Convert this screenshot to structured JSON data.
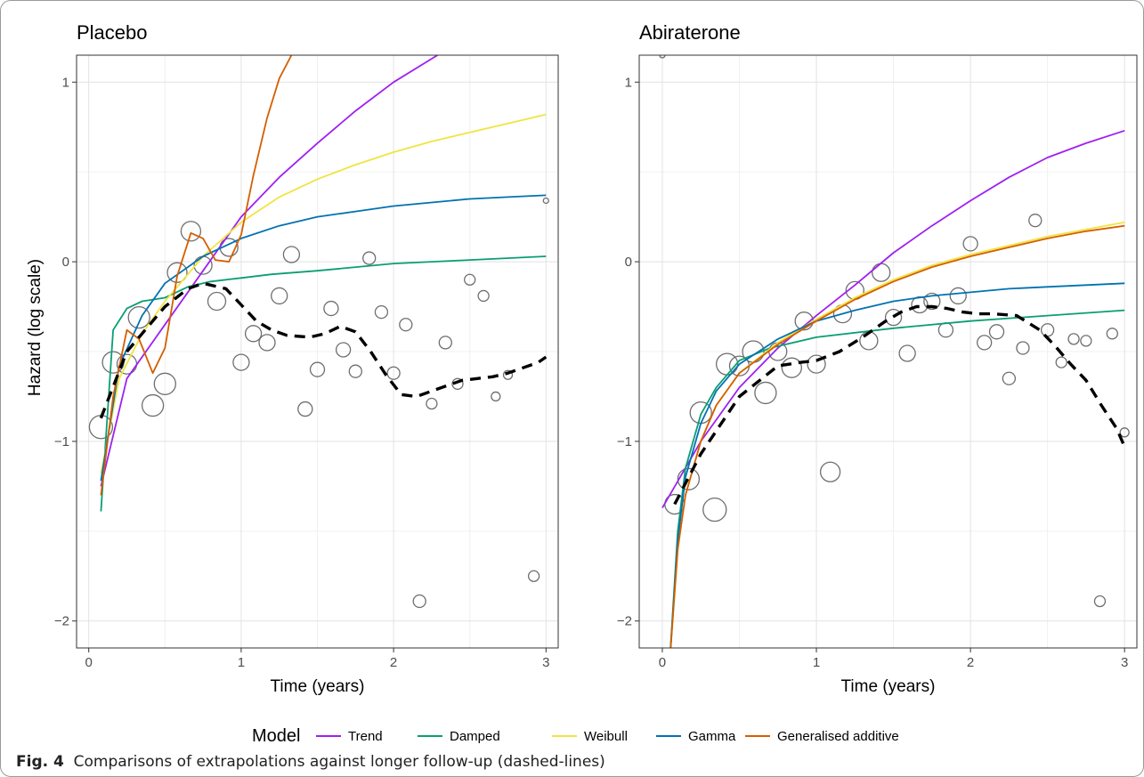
{
  "caption": {
    "label": "Fig. 4",
    "text": "Comparisons of extrapolations against longer follow-up (dashed-lines)"
  },
  "legend": {
    "title": "Model",
    "items": [
      {
        "name": "Trend",
        "color": "#a020f0"
      },
      {
        "name": "Damped",
        "color": "#0a9e73"
      },
      {
        "name": "Weibull",
        "color": "#f0e442"
      },
      {
        "name": "Gamma",
        "color": "#0072b2"
      },
      {
        "name": "Generalised additive",
        "color": "#d55e00"
      }
    ]
  },
  "chart_data": [
    {
      "type": "line",
      "title": "Placebo",
      "xlabel": "Time (years)",
      "ylabel": "Hazard (log scale)",
      "xlim": [
        -0.08,
        3.08
      ],
      "ylim": [
        -2.15,
        1.15
      ],
      "xticks": [
        0,
        1,
        2,
        3
      ],
      "yticks": [
        1,
        0,
        -1,
        -2
      ],
      "grid": true,
      "series": [
        {
          "name": "Trend",
          "color": "#a020f0",
          "x": [
            0.08,
            0.25,
            0.5,
            0.75,
            1.0,
            1.25,
            1.5,
            1.75,
            2.0,
            2.25,
            2.5,
            2.75,
            3.0
          ],
          "y": [
            -1.25,
            -0.65,
            -0.35,
            -0.05,
            0.25,
            0.47,
            0.66,
            0.84,
            1.0,
            1.13,
            1.26,
            1.38,
            1.48
          ]
        },
        {
          "name": "Damped",
          "color": "#0a9e73",
          "x": [
            0.08,
            0.16,
            0.25,
            0.35,
            0.5,
            0.65,
            0.8,
            1.0,
            1.2,
            1.5,
            2.0,
            2.5,
            3.0
          ],
          "y": [
            -1.39,
            -0.38,
            -0.26,
            -0.22,
            -0.2,
            -0.14,
            -0.11,
            -0.09,
            -0.07,
            -0.05,
            -0.01,
            0.01,
            0.03
          ]
        },
        {
          "name": "Weibull",
          "color": "#f0e442",
          "x": [
            0.08,
            0.2,
            0.35,
            0.5,
            0.75,
            1.0,
            1.25,
            1.5,
            1.75,
            2.0,
            2.25,
            2.5,
            2.75,
            3.0
          ],
          "y": [
            -1.18,
            -0.65,
            -0.4,
            -0.22,
            0.03,
            0.22,
            0.36,
            0.46,
            0.54,
            0.61,
            0.67,
            0.72,
            0.77,
            0.82
          ]
        },
        {
          "name": "Gamma",
          "color": "#0072b2",
          "x": [
            0.08,
            0.2,
            0.35,
            0.5,
            0.75,
            1.0,
            1.25,
            1.5,
            1.75,
            2.0,
            2.25,
            2.5,
            2.75,
            3.0
          ],
          "y": [
            -1.22,
            -0.58,
            -0.3,
            -0.12,
            0.03,
            0.13,
            0.2,
            0.25,
            0.28,
            0.31,
            0.33,
            0.35,
            0.36,
            0.37
          ]
        },
        {
          "name": "Generalised additive",
          "color": "#d55e00",
          "x": [
            0.08,
            0.16,
            0.25,
            0.33,
            0.42,
            0.5,
            0.58,
            0.67,
            0.75,
            0.83,
            0.92,
            1.0,
            1.08,
            1.17,
            1.25,
            1.33
          ],
          "y": [
            -1.3,
            -0.75,
            -0.38,
            -0.43,
            -0.62,
            -0.48,
            -0.08,
            0.16,
            0.13,
            0.01,
            0.0,
            0.15,
            0.48,
            0.8,
            1.02,
            1.15
          ]
        },
        {
          "name": "Longer follow-up",
          "color": "#000000",
          "dashed": true,
          "x": [
            0.08,
            0.25,
            0.5,
            0.65,
            0.75,
            0.9,
            1.0,
            1.1,
            1.2,
            1.3,
            1.45,
            1.55,
            1.65,
            1.75,
            1.85,
            1.95,
            2.05,
            2.15,
            2.25,
            2.35,
            2.45,
            2.55,
            2.65,
            2.75,
            2.85,
            2.95,
            3.0
          ],
          "y": [
            -0.87,
            -0.5,
            -0.25,
            -0.15,
            -0.12,
            -0.15,
            -0.24,
            -0.33,
            -0.38,
            -0.41,
            -0.42,
            -0.4,
            -0.36,
            -0.39,
            -0.5,
            -0.63,
            -0.74,
            -0.75,
            -0.72,
            -0.69,
            -0.66,
            -0.65,
            -0.64,
            -0.62,
            -0.59,
            -0.56,
            -0.53
          ]
        }
      ],
      "points": [
        {
          "x": 0.08,
          "y": -0.92,
          "r": 13
        },
        {
          "x": 0.16,
          "y": -0.56,
          "r": 12
        },
        {
          "x": 0.25,
          "y": -0.57,
          "r": 11
        },
        {
          "x": 0.33,
          "y": -0.31,
          "r": 12
        },
        {
          "x": 0.42,
          "y": -0.8,
          "r": 12
        },
        {
          "x": 0.5,
          "y": -0.68,
          "r": 12
        },
        {
          "x": 0.58,
          "y": -0.06,
          "r": 11
        },
        {
          "x": 0.67,
          "y": 0.17,
          "r": 11
        },
        {
          "x": 0.75,
          "y": -0.02,
          "r": 10
        },
        {
          "x": 0.84,
          "y": -0.22,
          "r": 10
        },
        {
          "x": 0.92,
          "y": 0.08,
          "r": 10
        },
        {
          "x": 1.0,
          "y": -0.56,
          "r": 9
        },
        {
          "x": 1.08,
          "y": -0.4,
          "r": 9
        },
        {
          "x": 1.17,
          "y": -0.45,
          "r": 9
        },
        {
          "x": 1.25,
          "y": -0.19,
          "r": 9
        },
        {
          "x": 1.33,
          "y": 0.04,
          "r": 9
        },
        {
          "x": 1.42,
          "y": -0.82,
          "r": 8
        },
        {
          "x": 1.5,
          "y": -0.6,
          "r": 8
        },
        {
          "x": 1.59,
          "y": -0.26,
          "r": 8
        },
        {
          "x": 1.67,
          "y": -0.49,
          "r": 8
        },
        {
          "x": 1.75,
          "y": -0.61,
          "r": 7
        },
        {
          "x": 1.84,
          "y": 0.02,
          "r": 7
        },
        {
          "x": 1.92,
          "y": -0.28,
          "r": 7
        },
        {
          "x": 2.0,
          "y": -0.62,
          "r": 7
        },
        {
          "x": 2.08,
          "y": -0.35,
          "r": 7
        },
        {
          "x": 2.17,
          "y": -1.89,
          "r": 7
        },
        {
          "x": 2.25,
          "y": -0.79,
          "r": 6
        },
        {
          "x": 2.34,
          "y": -0.45,
          "r": 7
        },
        {
          "x": 2.42,
          "y": -0.68,
          "r": 6
        },
        {
          "x": 2.5,
          "y": -0.1,
          "r": 6
        },
        {
          "x": 2.59,
          "y": -0.19,
          "r": 6
        },
        {
          "x": 2.67,
          "y": -0.75,
          "r": 5
        },
        {
          "x": 2.75,
          "y": -0.63,
          "r": 5
        },
        {
          "x": 2.92,
          "y": -1.75,
          "r": 6
        },
        {
          "x": 3.0,
          "y": 0.34,
          "r": 3
        }
      ]
    },
    {
      "type": "line",
      "title": "Abiraterone",
      "xlabel": "Time (years)",
      "ylabel": "",
      "xlim": [
        -0.15,
        3.08
      ],
      "ylim": [
        -2.15,
        1.15
      ],
      "xticks": [
        0,
        1,
        2,
        3
      ],
      "yticks": [
        1,
        0,
        -1,
        -2
      ],
      "grid": true,
      "series": [
        {
          "name": "Trend",
          "color": "#a020f0",
          "x": [
            0.0,
            0.25,
            0.5,
            0.75,
            1.0,
            1.25,
            1.5,
            1.75,
            2.0,
            2.25,
            2.5,
            2.75,
            3.0
          ],
          "y": [
            -1.37,
            -1.0,
            -0.7,
            -0.48,
            -0.3,
            -0.13,
            0.05,
            0.2,
            0.34,
            0.47,
            0.58,
            0.66,
            0.73
          ]
        },
        {
          "name": "Damped",
          "color": "#0a9e73",
          "x": [
            0.05,
            0.1,
            0.15,
            0.25,
            0.35,
            0.5,
            0.7,
            1.0,
            1.5,
            2.0,
            2.5,
            3.0
          ],
          "y": [
            -2.2,
            -1.5,
            -1.15,
            -0.85,
            -0.7,
            -0.55,
            -0.48,
            -0.42,
            -0.37,
            -0.33,
            -0.3,
            -0.27
          ]
        },
        {
          "name": "Weibull",
          "color": "#f0e442",
          "x": [
            0.05,
            0.1,
            0.15,
            0.25,
            0.35,
            0.5,
            0.75,
            1.0,
            1.25,
            1.5,
            1.75,
            2.0,
            2.25,
            2.5,
            2.75,
            3.0
          ],
          "y": [
            -2.2,
            -1.6,
            -1.3,
            -1.0,
            -0.8,
            -0.62,
            -0.45,
            -0.32,
            -0.2,
            -0.1,
            -0.02,
            0.04,
            0.09,
            0.14,
            0.18,
            0.22
          ]
        },
        {
          "name": "Gamma",
          "color": "#0072b2",
          "x": [
            0.05,
            0.1,
            0.15,
            0.25,
            0.35,
            0.5,
            0.75,
            1.0,
            1.25,
            1.5,
            1.75,
            2.0,
            2.25,
            2.5,
            2.75,
            3.0
          ],
          "y": [
            -2.2,
            -1.55,
            -1.2,
            -0.9,
            -0.72,
            -0.57,
            -0.43,
            -0.33,
            -0.27,
            -0.22,
            -0.19,
            -0.17,
            -0.15,
            -0.14,
            -0.13,
            -0.12
          ]
        },
        {
          "name": "Generalised additive",
          "color": "#d55e00",
          "x": [
            0.05,
            0.1,
            0.15,
            0.25,
            0.35,
            0.5,
            0.75,
            1.0,
            1.25,
            1.5,
            1.75,
            2.0,
            2.25,
            2.5,
            2.75,
            3.0
          ],
          "y": [
            -2.2,
            -1.6,
            -1.3,
            -1.0,
            -0.8,
            -0.62,
            -0.46,
            -0.33,
            -0.21,
            -0.11,
            -0.03,
            0.03,
            0.08,
            0.13,
            0.17,
            0.2
          ]
        },
        {
          "name": "Longer follow-up",
          "color": "#000000",
          "dashed": true,
          "x": [
            0.08,
            0.25,
            0.5,
            0.75,
            0.9,
            1.0,
            1.15,
            1.3,
            1.45,
            1.55,
            1.65,
            1.75,
            1.85,
            1.95,
            2.05,
            2.15,
            2.3,
            2.45,
            2.55,
            2.65,
            2.75,
            2.85,
            2.95,
            3.0
          ],
          "y": [
            -1.35,
            -1.07,
            -0.75,
            -0.58,
            -0.56,
            -0.55,
            -0.5,
            -0.42,
            -0.33,
            -0.28,
            -0.25,
            -0.25,
            -0.26,
            -0.28,
            -0.29,
            -0.29,
            -0.3,
            -0.38,
            -0.47,
            -0.57,
            -0.66,
            -0.8,
            -0.93,
            -1.03
          ]
        }
      ],
      "points": [
        {
          "x": 0.0,
          "y": 1.15,
          "r": 3
        },
        {
          "x": 0.08,
          "y": -1.35,
          "r": 11
        },
        {
          "x": 0.17,
          "y": -1.21,
          "r": 12
        },
        {
          "x": 0.25,
          "y": -0.84,
          "r": 12
        },
        {
          "x": 0.34,
          "y": -1.38,
          "r": 13
        },
        {
          "x": 0.42,
          "y": -0.57,
          "r": 12
        },
        {
          "x": 0.5,
          "y": -0.58,
          "r": 11
        },
        {
          "x": 0.59,
          "y": -0.5,
          "r": 12
        },
        {
          "x": 0.67,
          "y": -0.73,
          "r": 12
        },
        {
          "x": 0.75,
          "y": -0.5,
          "r": 10
        },
        {
          "x": 0.84,
          "y": -0.59,
          "r": 11
        },
        {
          "x": 0.92,
          "y": -0.33,
          "r": 10
        },
        {
          "x": 1.0,
          "y": -0.57,
          "r": 10
        },
        {
          "x": 1.09,
          "y": -1.17,
          "r": 11
        },
        {
          "x": 1.17,
          "y": -0.29,
          "r": 10
        },
        {
          "x": 1.25,
          "y": -0.16,
          "r": 10
        },
        {
          "x": 1.34,
          "y": -0.44,
          "r": 10
        },
        {
          "x": 1.42,
          "y": -0.06,
          "r": 10
        },
        {
          "x": 1.5,
          "y": -0.31,
          "r": 9
        },
        {
          "x": 1.59,
          "y": -0.51,
          "r": 9
        },
        {
          "x": 1.67,
          "y": -0.24,
          "r": 9
        },
        {
          "x": 1.75,
          "y": -0.22,
          "r": 9
        },
        {
          "x": 1.84,
          "y": -0.38,
          "r": 8
        },
        {
          "x": 1.92,
          "y": -0.19,
          "r": 9
        },
        {
          "x": 2.0,
          "y": 0.1,
          "r": 8
        },
        {
          "x": 2.09,
          "y": -0.45,
          "r": 8
        },
        {
          "x": 2.17,
          "y": -0.39,
          "r": 8
        },
        {
          "x": 2.25,
          "y": -0.65,
          "r": 7
        },
        {
          "x": 2.34,
          "y": -0.48,
          "r": 7
        },
        {
          "x": 2.42,
          "y": 0.23,
          "r": 7
        },
        {
          "x": 2.5,
          "y": -0.38,
          "r": 7
        },
        {
          "x": 2.59,
          "y": -0.56,
          "r": 6
        },
        {
          "x": 2.67,
          "y": -0.43,
          "r": 6
        },
        {
          "x": 2.75,
          "y": -0.44,
          "r": 6
        },
        {
          "x": 2.84,
          "y": -1.89,
          "r": 6
        },
        {
          "x": 2.92,
          "y": -0.4,
          "r": 6
        },
        {
          "x": 3.0,
          "y": -0.95,
          "r": 5
        }
      ]
    }
  ]
}
